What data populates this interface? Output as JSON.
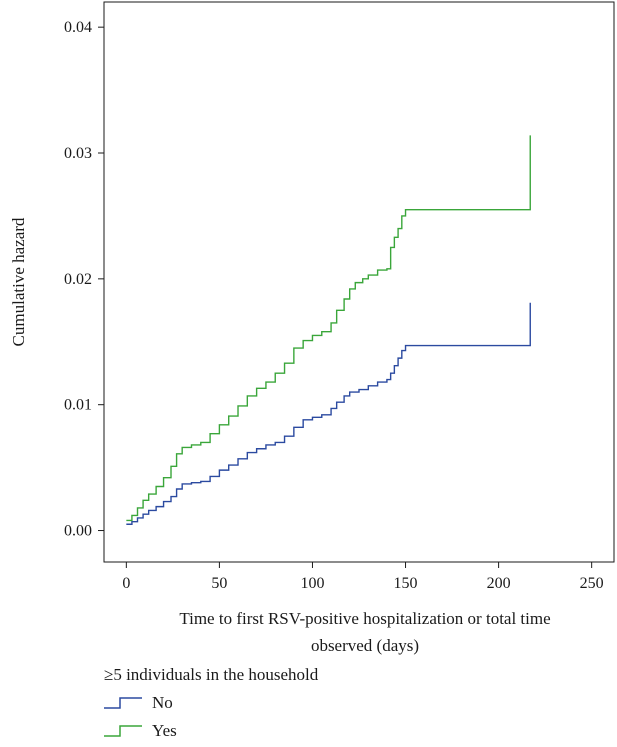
{
  "chart_data": {
    "type": "line",
    "step": true,
    "xlabel_lines": [
      "Time to first RSV-positive hospitalization or total time",
      "observed (days)"
    ],
    "ylabel": "Cumulative hazard",
    "xlim": [
      -12,
      262
    ],
    "ylim": [
      -0.0025,
      0.042
    ],
    "xticks": [
      0,
      50,
      100,
      150,
      200,
      250
    ],
    "yticks": [
      0.0,
      0.01,
      0.02,
      0.03,
      0.04
    ],
    "ytick_labels": [
      "0.00",
      "0.01",
      "0.02",
      "0.03",
      "0.04"
    ],
    "legend_title": "≥5 individuals in the household",
    "legend_position": "bottom",
    "series": [
      {
        "name": "No",
        "color": "#2b4aa0",
        "x": [
          0,
          3,
          6,
          9,
          12,
          16,
          20,
          24,
          27,
          30,
          35,
          40,
          45,
          50,
          55,
          60,
          65,
          70,
          75,
          80,
          85,
          90,
          95,
          100,
          105,
          110,
          113,
          117,
          120,
          125,
          130,
          135,
          140,
          142,
          144,
          146,
          148,
          150,
          217,
          217
        ],
        "y": [
          0.0005,
          0.0007,
          0.001,
          0.0013,
          0.0016,
          0.0019,
          0.0023,
          0.0027,
          0.0033,
          0.0037,
          0.0038,
          0.0039,
          0.0043,
          0.0048,
          0.0052,
          0.0057,
          0.0062,
          0.0065,
          0.0068,
          0.007,
          0.0075,
          0.0082,
          0.0088,
          0.009,
          0.0092,
          0.0097,
          0.0102,
          0.0107,
          0.011,
          0.0112,
          0.0115,
          0.0118,
          0.012,
          0.0125,
          0.0131,
          0.0137,
          0.0143,
          0.0147,
          0.0147,
          0.0181
        ]
      },
      {
        "name": "Yes",
        "color": "#3aa63a",
        "x": [
          0,
          3,
          6,
          9,
          12,
          16,
          20,
          24,
          27,
          30,
          35,
          40,
          45,
          50,
          55,
          60,
          65,
          70,
          75,
          80,
          85,
          90,
          95,
          100,
          105,
          110,
          113,
          117,
          120,
          123,
          127,
          130,
          135,
          140,
          142,
          144,
          146,
          148,
          150,
          217,
          217
        ],
        "y": [
          0.0008,
          0.0012,
          0.0018,
          0.0024,
          0.0029,
          0.0035,
          0.0042,
          0.0051,
          0.0061,
          0.0066,
          0.0068,
          0.007,
          0.0077,
          0.0084,
          0.0091,
          0.0099,
          0.0107,
          0.0113,
          0.0118,
          0.0125,
          0.0133,
          0.0145,
          0.0151,
          0.0155,
          0.0158,
          0.0165,
          0.0175,
          0.0184,
          0.0192,
          0.0197,
          0.02,
          0.0203,
          0.0207,
          0.0208,
          0.0225,
          0.0233,
          0.024,
          0.025,
          0.0255,
          0.0255,
          0.0314
        ]
      }
    ]
  }
}
